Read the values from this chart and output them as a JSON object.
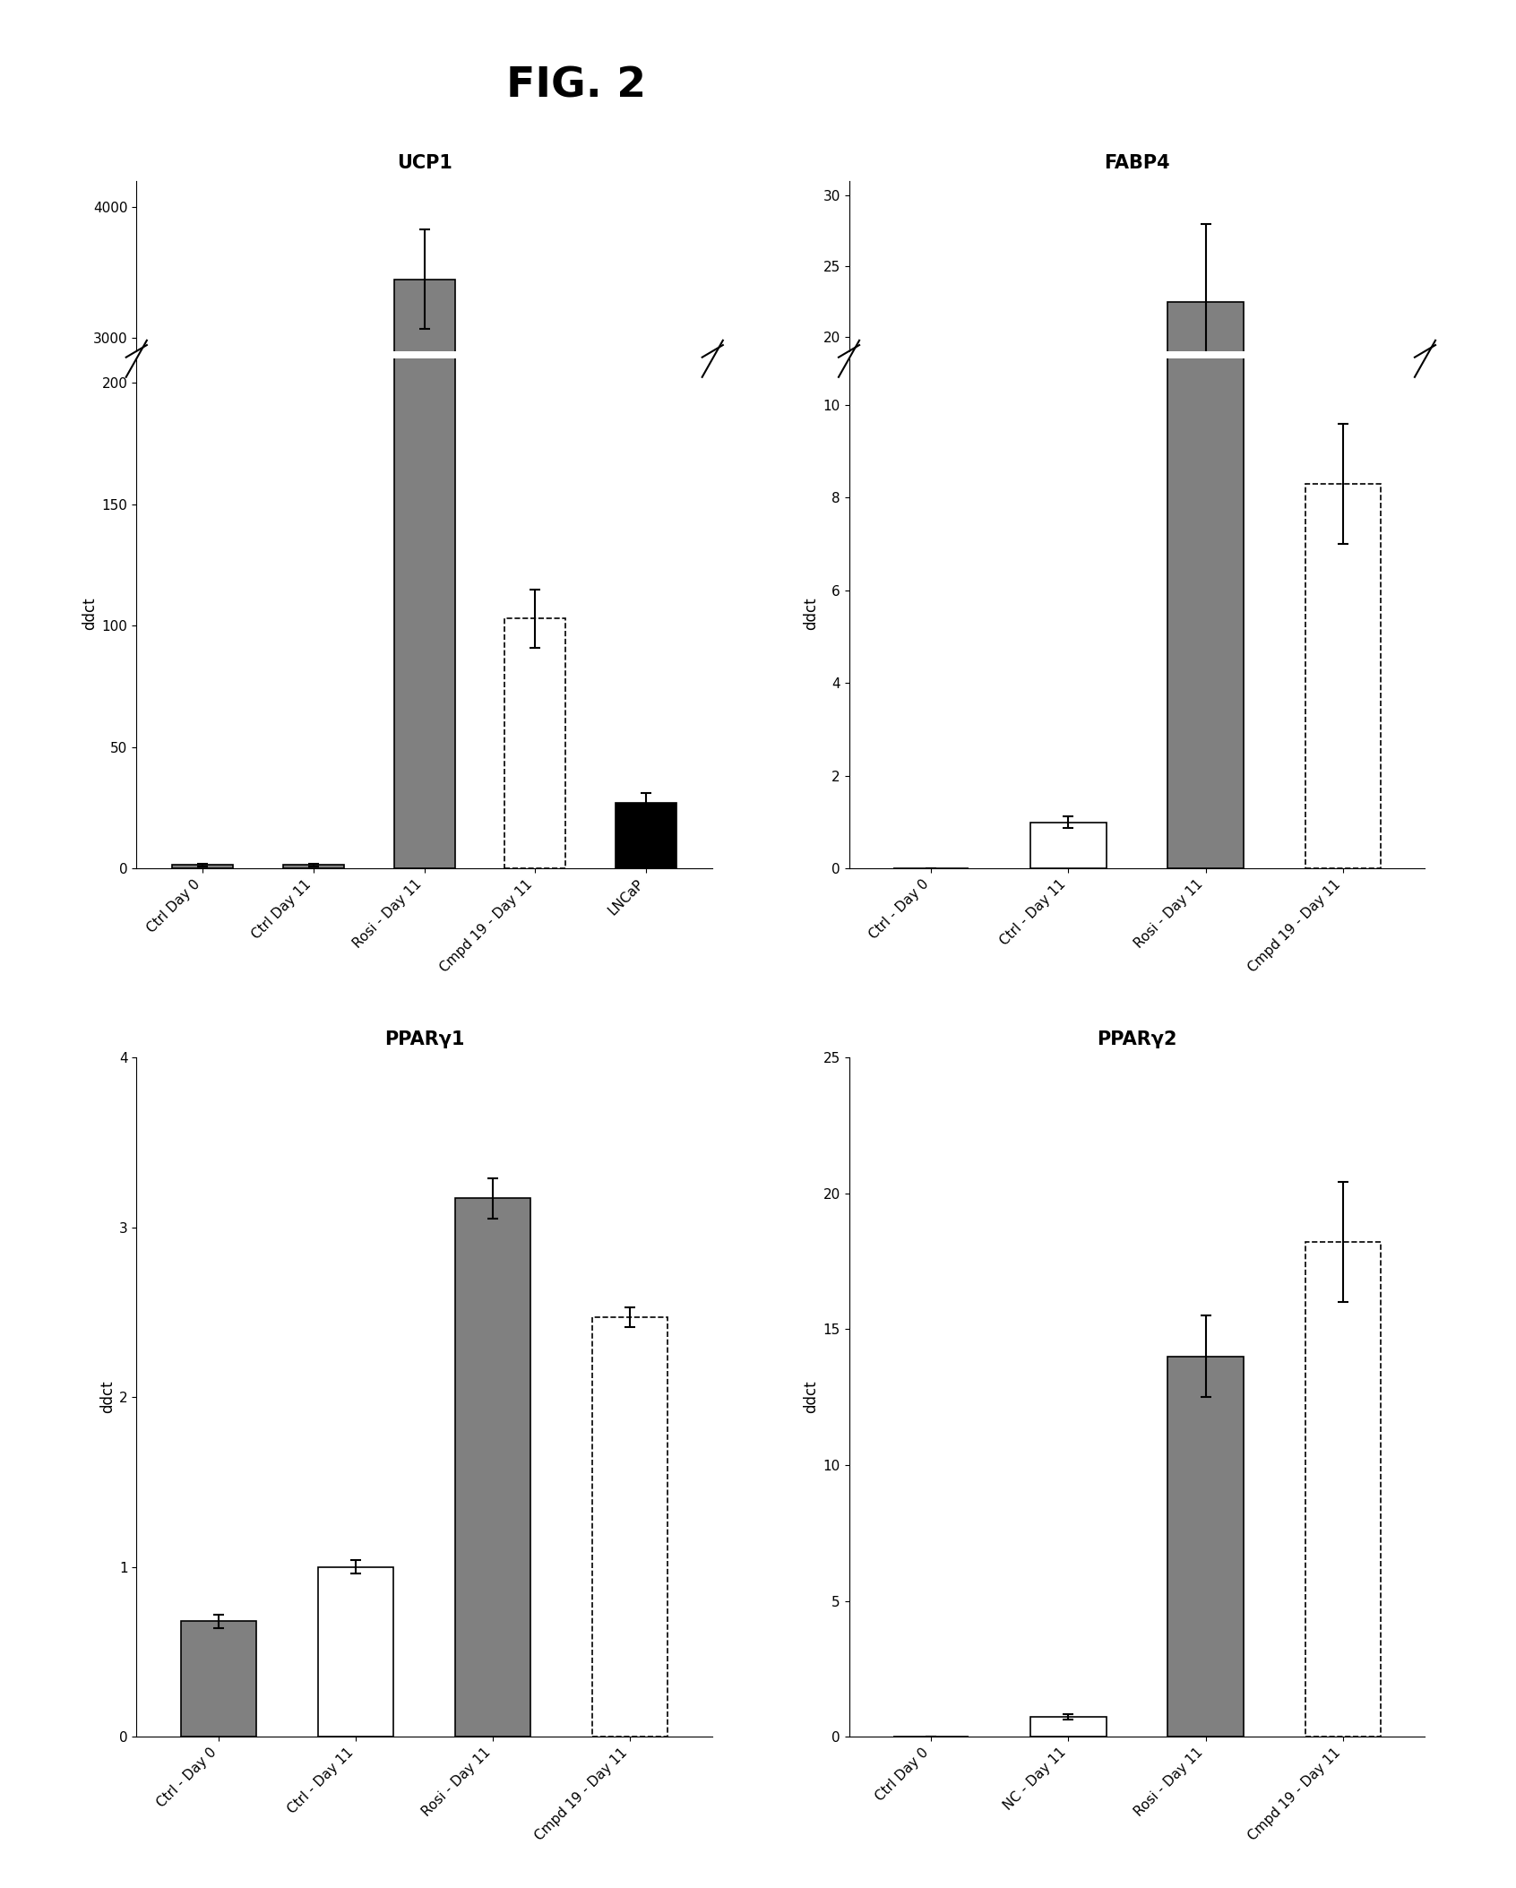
{
  "fig_title": "FIG. 2",
  "background_color": "#ffffff",
  "subplots": [
    {
      "title": "UCP1",
      "ylabel": "ddct",
      "categories": [
        "Ctrl Day 0",
        "Ctrl Day 11",
        "Rosi - Day 11",
        "Cmpd 19 - Day 11",
        "LNCaP"
      ],
      "values": [
        1.5,
        1.5,
        3450,
        103,
        27
      ],
      "errors": [
        0.5,
        0.5,
        380,
        12,
        4
      ],
      "colors": [
        "#808080",
        "#808080",
        "#808080",
        "#ffffff",
        "#000000"
      ],
      "edgecolors": [
        "#000000",
        "#000000",
        "#000000",
        "#000000",
        "#000000"
      ],
      "linestyles": [
        "-",
        "-",
        "-",
        "--",
        "-"
      ],
      "ylim_lower": [
        0,
        210
      ],
      "ylim_upper": [
        2900,
        4200
      ],
      "yticks_lower": [
        0,
        50,
        100,
        150,
        200
      ],
      "ytick_labels_lower": [
        "0",
        "50",
        "100",
        "150",
        "200"
      ],
      "yticks_upper": [
        3000,
        4000
      ],
      "ytick_labels_upper": [
        "3000",
        "4000"
      ],
      "broken_axis": true
    },
    {
      "title": "FABP4",
      "ylabel": "ddct",
      "categories": [
        "Ctrl - Day 0",
        "Ctrl - Day 11",
        "Rosi - Day 11",
        "Cmpd 19 - Day 11"
      ],
      "values": [
        0,
        1.0,
        22.5,
        8.3
      ],
      "errors": [
        0,
        0.12,
        5.5,
        1.3
      ],
      "colors": [
        "#808080",
        "#ffffff",
        "#808080",
        "#ffffff"
      ],
      "edgecolors": [
        "#000000",
        "#000000",
        "#000000",
        "#000000"
      ],
      "linestyles": [
        "-",
        "-",
        "-",
        "--"
      ],
      "ylim_lower": [
        0,
        11
      ],
      "ylim_upper": [
        19,
        31
      ],
      "yticks_lower": [
        0,
        2,
        4,
        6,
        8,
        10
      ],
      "ytick_labels_lower": [
        "0",
        "2",
        "4",
        "6",
        "8",
        "10"
      ],
      "yticks_upper": [
        20,
        25,
        30
      ],
      "ytick_labels_upper": [
        "20",
        "25",
        "30"
      ],
      "broken_axis": true
    },
    {
      "title": "PPARγ1",
      "ylabel": "ddct",
      "categories": [
        "Ctrl - Day 0",
        "Ctrl - Day 11",
        "Rosi - Day 11",
        "Cmpd 19 - Day 11"
      ],
      "values": [
        0.68,
        1.0,
        3.17,
        2.47
      ],
      "errors": [
        0.04,
        0.04,
        0.12,
        0.06
      ],
      "colors": [
        "#808080",
        "#ffffff",
        "#808080",
        "#ffffff"
      ],
      "edgecolors": [
        "#000000",
        "#000000",
        "#000000",
        "#000000"
      ],
      "linestyles": [
        "-",
        "-",
        "-",
        "--"
      ],
      "ylim": [
        0,
        4
      ],
      "yticks": [
        0,
        1,
        2,
        3,
        4
      ],
      "ytick_labels": [
        "0",
        "1",
        "2",
        "3",
        "4"
      ],
      "broken_axis": false
    },
    {
      "title": "PPARγ2",
      "ylabel": "ddct",
      "categories": [
        "Ctrl Day 0",
        "NC - Day 11",
        "Rosi - Day 11",
        "Cmpd 19 - Day 11"
      ],
      "values": [
        0,
        0.75,
        14.0,
        18.2
      ],
      "errors": [
        0,
        0.1,
        1.5,
        2.2
      ],
      "colors": [
        "#808080",
        "#ffffff",
        "#808080",
        "#ffffff"
      ],
      "edgecolors": [
        "#000000",
        "#000000",
        "#000000",
        "#000000"
      ],
      "linestyles": [
        "-",
        "-",
        "-",
        "--"
      ],
      "ylim": [
        0,
        25
      ],
      "yticks": [
        0,
        5,
        10,
        15,
        20,
        25
      ],
      "ytick_labels": [
        "0",
        "5",
        "10",
        "15",
        "20",
        "25"
      ],
      "broken_axis": false
    }
  ]
}
